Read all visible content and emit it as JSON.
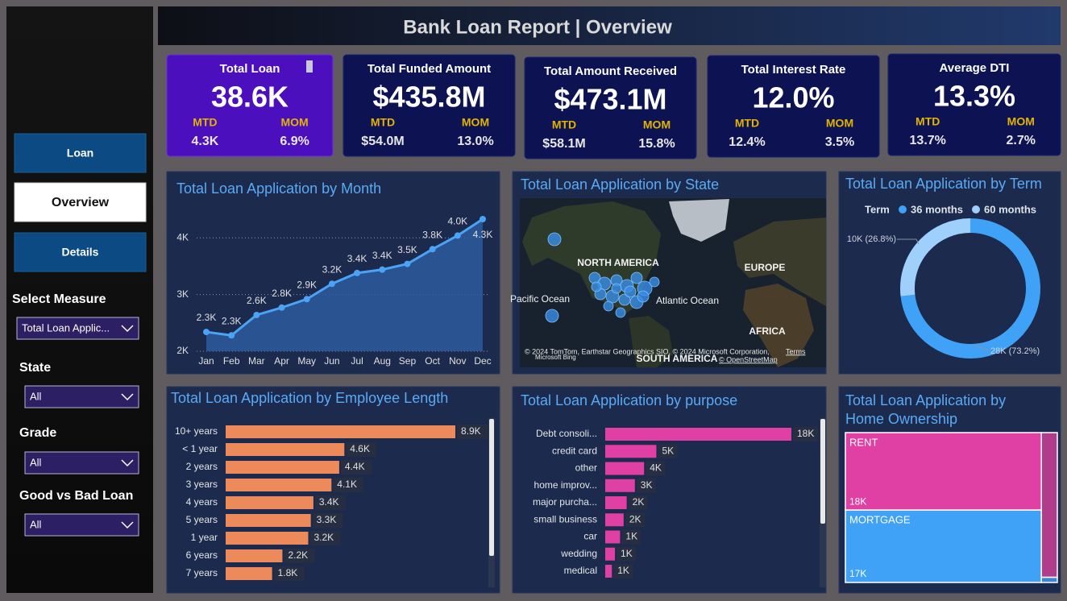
{
  "header": {
    "title": "Bank Loan Report | Overview"
  },
  "nav": [
    "Loan",
    "Overview",
    "Details"
  ],
  "filters": [
    {
      "label": "Select Measure",
      "value": "Total Loan Applic..."
    },
    {
      "label": "State",
      "value": "All"
    },
    {
      "label": "Grade",
      "value": "All"
    },
    {
      "label": "Good vs Bad Loan",
      "value": "All"
    }
  ],
  "kpi_labels": {
    "mtd": "MTD",
    "mom": "MOM"
  },
  "kpis": [
    {
      "title": "Total Loan",
      "value": "38.6K",
      "mtd": "4.3K",
      "mom": "6.9%"
    },
    {
      "title": "Total Funded Amount",
      "value": "$435.8M",
      "mtd": "$54.0M",
      "mom": "13.0%"
    },
    {
      "title": "Total Amount Received",
      "value": "$473.1M",
      "mtd": "$58.1M",
      "mom": "15.8%"
    },
    {
      "title": "Total Interest Rate",
      "value": "12.0%",
      "mtd": "12.4%",
      "mom": "3.5%"
    },
    {
      "title": "Average DTI",
      "value": "13.3%",
      "mtd": "13.7%",
      "mom": "2.7%"
    }
  ],
  "chart_data": [
    {
      "type": "line",
      "title": "Total Loan Application by Month",
      "categories": [
        "Jan",
        "Feb",
        "Mar",
        "Apr",
        "May",
        "Jun",
        "Jul",
        "Aug",
        "Sep",
        "Oct",
        "Nov",
        "Dec"
      ],
      "values": [
        2340,
        2280,
        2640,
        2770,
        2920,
        3190,
        3380,
        3440,
        3540,
        3800,
        4040,
        4330
      ],
      "value_labels": [
        "2.3K",
        "2.3K",
        "2.6K",
        "2.8K",
        "2.9K",
        "3.2K",
        "3.4K",
        "3.4K",
        "3.5K",
        "3.8K",
        "4.0K",
        "4.3K"
      ],
      "color": "#4aa3f5",
      "ylim": [
        2000,
        4600
      ],
      "yticks": [
        {
          "value": 2000,
          "label": "2K"
        },
        {
          "value": 3000,
          "label": "3K"
        },
        {
          "value": 4000,
          "label": "4K"
        }
      ],
      "grid": true
    },
    {
      "type": "map",
      "title": "Total Loan Application by State",
      "labels": [
        "NORTH AMERICA",
        "EUROPE",
        "Pacific Ocean",
        "Atlantic Ocean",
        "AFRICA",
        "SOUTH AMERICA"
      ],
      "attribution": [
        "© 2024 TomTom, Earthstar Geographics SIO, © 2024 Microsoft Corporation,",
        "Terms",
        "Microsoft Bing",
        "© OpenStreetMap"
      ],
      "color": "#3a8fe8"
    },
    {
      "type": "donut",
      "title": "Total Loan Application by Term",
      "legend_title": "Term",
      "categories": [
        "36 months",
        "60 months"
      ],
      "values": [
        28300,
        10350
      ],
      "value_labels": [
        "28K (73.2%)",
        "10K (26.8%)"
      ],
      "colors": [
        "#3fa2f7",
        "#9fd0fb"
      ]
    },
    {
      "type": "hbar",
      "title": "Total Loan Application by Employee Length",
      "categories": [
        "10+ years",
        "< 1 year",
        "2 years",
        "3 years",
        "4 years",
        "5 years",
        "1 year",
        "6 years",
        "7 years"
      ],
      "values": [
        8900,
        4600,
        4400,
        4100,
        3400,
        3300,
        3200,
        2200,
        1800
      ],
      "value_labels": [
        "8.9K",
        "4.6K",
        "4.4K",
        "4.1K",
        "3.4K",
        "3.3K",
        "3.2K",
        "2.2K",
        "1.8K"
      ],
      "color": "#ec8a5c"
    },
    {
      "type": "hbar",
      "title": "Total Loan Application by purpose",
      "categories": [
        "Debt consoli...",
        "credit card",
        "other",
        "home improv...",
        "major purcha...",
        "small business",
        "car",
        "wedding",
        "medical"
      ],
      "values": [
        18200,
        5000,
        3800,
        2900,
        2100,
        1800,
        1450,
        950,
        650
      ],
      "value_labels": [
        "18K",
        "5K",
        "4K",
        "3K",
        "2K",
        "2K",
        "1K",
        "1K",
        "1K"
      ],
      "color": "#e040a4"
    },
    {
      "type": "treemap",
      "title": "Total Loan Application by Home Ownership",
      "categories": [
        "RENT",
        "MORTGAGE",
        null,
        null
      ],
      "values": [
        18400,
        17200,
        2800,
        100
      ],
      "value_labels": [
        "18K",
        "17K",
        null,
        null
      ],
      "colors": [
        "#e040a4",
        "#3fa2f7",
        "#b03c8c",
        "#3a86d8"
      ]
    }
  ]
}
